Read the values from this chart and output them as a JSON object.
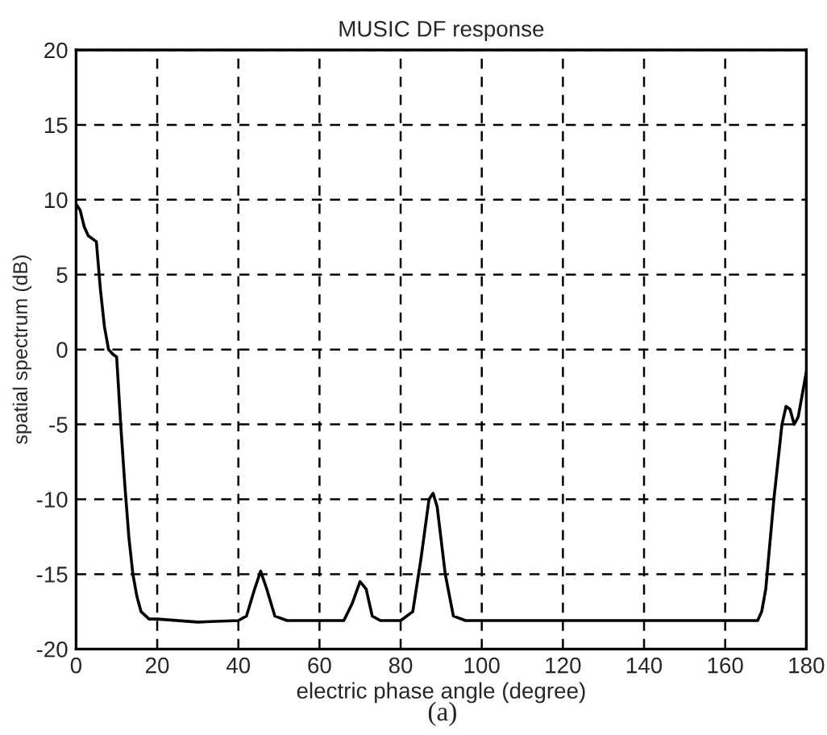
{
  "chart_data": {
    "type": "line",
    "title": "MUSIC DF response",
    "xlabel": "electric phase angle (degree)",
    "ylabel": "spatial spectrum (dB)",
    "series": [
      {
        "color": "#000000",
        "x": [
          0,
          1,
          2,
          3,
          5,
          6,
          7,
          8,
          9,
          10,
          11,
          12,
          13,
          14,
          15,
          16,
          18,
          20,
          30,
          40,
          42,
          44,
          45.5,
          47,
          49,
          52,
          60,
          66,
          68,
          70,
          71.5,
          73,
          75,
          80,
          83,
          85,
          87,
          88,
          89,
          91,
          93,
          96,
          120,
          160,
          168,
          169,
          170,
          172,
          174,
          175,
          176,
          177,
          178,
          179,
          180
        ],
        "values": [
          9.7,
          9.3,
          8.2,
          7.6,
          7.2,
          4,
          1.5,
          0,
          -0.3,
          -0.5,
          -5,
          -9,
          -12.5,
          -15,
          -16.5,
          -17.5,
          -18,
          -18,
          -18.2,
          -18.1,
          -17.8,
          -16,
          -14.8,
          -16,
          -17.8,
          -18.1,
          -18.1,
          -18.1,
          -17,
          -15.5,
          -16,
          -17.8,
          -18.1,
          -18.1,
          -17.5,
          -14,
          -10,
          -9.6,
          -10.5,
          -15,
          -17.8,
          -18.1,
          -18.1,
          -18.1,
          -18.1,
          -17.5,
          -16,
          -10,
          -5,
          -3.8,
          -4,
          -5,
          -4.5,
          -3,
          -1.5
        ]
      }
    ],
    "xlim": [
      0,
      180
    ],
    "ylim": [
      -20,
      20
    ],
    "xticks": [
      0,
      20,
      40,
      60,
      80,
      100,
      120,
      140,
      160,
      180
    ],
    "yticks": [
      -20,
      -15,
      -10,
      -5,
      0,
      5,
      10,
      15,
      20
    ],
    "grid": true,
    "line_style": "solid",
    "marker": "none",
    "annotations": [
      "(a)"
    ]
  }
}
